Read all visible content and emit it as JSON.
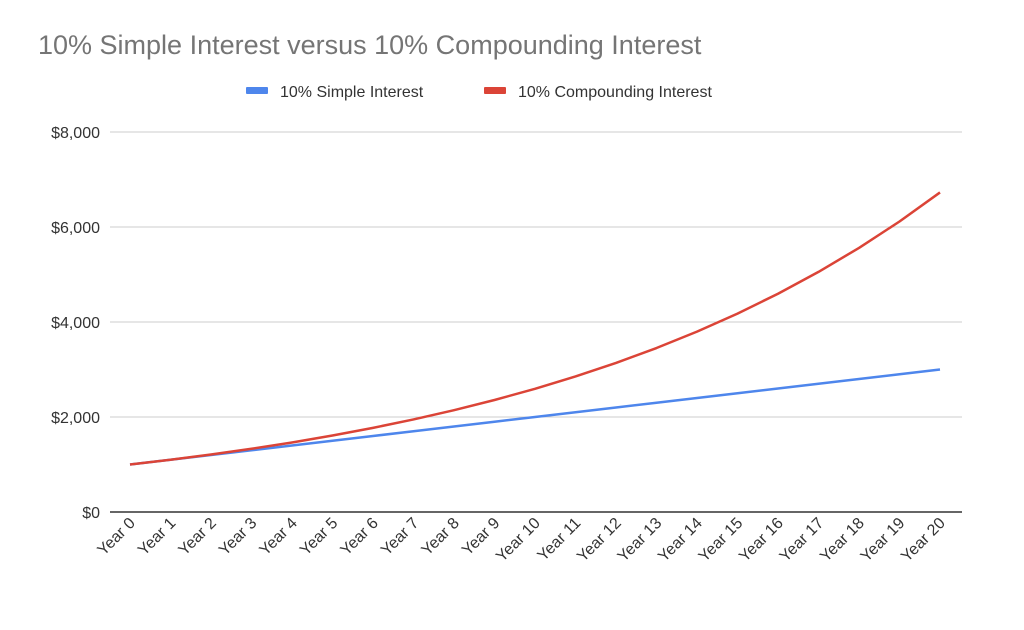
{
  "chart_data": {
    "type": "line",
    "title": "10% Simple Interest versus 10% Compounding Interest",
    "xlabel": "",
    "ylabel": "",
    "ylim": [
      0,
      8000
    ],
    "yticks": [
      0,
      2000,
      4000,
      6000,
      8000
    ],
    "ytick_labels": [
      "$0",
      "$2,000",
      "$4,000",
      "$6,000",
      "$8,000"
    ],
    "grid": true,
    "legend_position": "top-center",
    "categories": [
      "Year 0",
      "Year 1",
      "Year 2",
      "Year 3",
      "Year 4",
      "Year 5",
      "Year 6",
      "Year 7",
      "Year 8",
      "Year 9",
      "Year 10",
      "Year 11",
      "Year 12",
      "Year 13",
      "Year 14",
      "Year 15",
      "Year 16",
      "Year 17",
      "Year 18",
      "Year 19",
      "Year 20"
    ],
    "series": [
      {
        "name": "10% Simple Interest",
        "color": "#4e86ec",
        "values": [
          1000,
          1100,
          1200,
          1300,
          1400,
          1500,
          1600,
          1700,
          1800,
          1900,
          2000,
          2100,
          2200,
          2300,
          2400,
          2500,
          2600,
          2700,
          2800,
          2900,
          3000
        ]
      },
      {
        "name": "10% Compounding Interest",
        "color": "#db4437",
        "values": [
          1000,
          1100,
          1210,
          1331,
          1464.1,
          1610.51,
          1771.56,
          1948.72,
          2143.59,
          2357.95,
          2593.74,
          2853.12,
          3138.43,
          3452.27,
          3797.5,
          4177.25,
          4594.97,
          5054.47,
          5559.92,
          6115.91,
          6727.5
        ]
      }
    ]
  }
}
